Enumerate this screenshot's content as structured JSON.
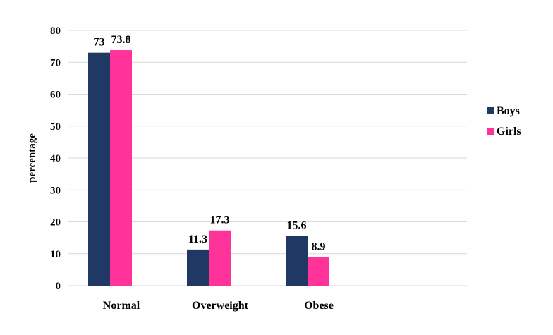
{
  "chart_data": {
    "type": "bar",
    "categories": [
      "Normal",
      "Overweight",
      "Obese"
    ],
    "series": [
      {
        "name": "Boys",
        "values": [
          73,
          11.3,
          15.6
        ],
        "color": "#1f3864"
      },
      {
        "name": "Girls",
        "values": [
          73.8,
          17.3,
          8.9
        ],
        "color": "#ff3399"
      }
    ],
    "data_labels": [
      [
        "73",
        "11.3",
        "15.6"
      ],
      [
        "73.8",
        "17.3",
        "8.9"
      ]
    ],
    "ylabel": "percentage",
    "xlabel": "",
    "ylim": [
      0,
      80
    ],
    "yticks": [
      "0",
      "10",
      "20",
      "30",
      "40",
      "50",
      "60",
      "70",
      "80"
    ],
    "grid": true,
    "legend_position": "right"
  }
}
